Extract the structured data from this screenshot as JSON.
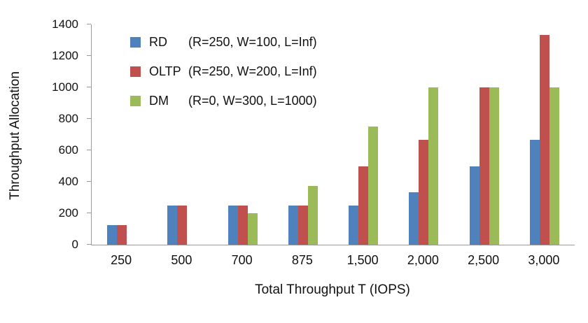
{
  "chart_data": {
    "type": "bar",
    "title": "",
    "xlabel": "Total Throughput T (IOPS)",
    "ylabel": "Throughput Allocation",
    "ylim": [
      0,
      1400
    ],
    "ytick_step": 200,
    "grid": false,
    "legend_position": "top-left-inside",
    "categories": [
      "250",
      "500",
      "700",
      "875",
      "1,500",
      "2,000",
      "2,500",
      "3,000"
    ],
    "series": [
      {
        "name": "RD",
        "params": "(R=250, W=100, L=Inf)",
        "color": "#4F81BD",
        "values": [
          125,
          250,
          250,
          250,
          250,
          333,
          500,
          667
        ]
      },
      {
        "name": "OLTP",
        "params": "(R=250, W=200, L=Inf)",
        "color": "#C0504D",
        "values": [
          125,
          250,
          250,
          250,
          500,
          667,
          1000,
          1333
        ]
      },
      {
        "name": "DM",
        "params": "(R=0, W=300, L=1000)",
        "color": "#9BBB59",
        "values": [
          0,
          0,
          200,
          375,
          750,
          1000,
          1000,
          1000
        ]
      }
    ]
  }
}
